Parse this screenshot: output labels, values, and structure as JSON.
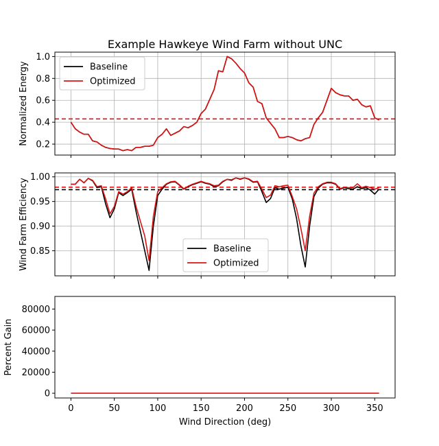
{
  "figure": {
    "title": "Example Hawkeye Wind Farm without UNC",
    "xlabel": "Wind Direction (deg)",
    "x_ticks": [
      0,
      50,
      100,
      150,
      200,
      250,
      300,
      350
    ]
  },
  "legend": {
    "baseline_label": "Baseline",
    "optimized_label": "Optimized"
  },
  "colors": {
    "baseline": "#000000",
    "optimized": "#dd1111",
    "grid": "#b0b0b0"
  },
  "chart_data": [
    {
      "type": "line",
      "title": "Example Hawkeye Wind Farm without UNC",
      "ylabel": "Normalized Energy",
      "xlim": [
        -18.5,
        373.5
      ],
      "ylim": [
        0.1,
        1.04
      ],
      "y_ticks": [
        0.2,
        0.4,
        0.6,
        0.8,
        1.0
      ],
      "y_tick_labels": [
        "0.2",
        "0.4",
        "0.6",
        "0.8",
        "1.0"
      ],
      "grid": true,
      "legend_position": "upper-left",
      "x": [
        0,
        5,
        10,
        15,
        20,
        25,
        30,
        35,
        40,
        45,
        50,
        55,
        60,
        65,
        70,
        75,
        80,
        85,
        90,
        95,
        100,
        105,
        110,
        115,
        120,
        125,
        130,
        135,
        140,
        145,
        150,
        155,
        160,
        165,
        170,
        175,
        180,
        185,
        190,
        195,
        200,
        205,
        210,
        215,
        220,
        225,
        230,
        235,
        240,
        245,
        250,
        255,
        260,
        265,
        270,
        275,
        280,
        285,
        290,
        295,
        300,
        305,
        310,
        315,
        320,
        325,
        330,
        335,
        340,
        345,
        350,
        355
      ],
      "series": [
        {
          "name": "Baseline",
          "values": [
            0.4,
            0.34,
            0.31,
            0.29,
            0.29,
            0.23,
            0.22,
            0.19,
            0.17,
            0.16,
            0.155,
            0.155,
            0.14,
            0.15,
            0.14,
            0.17,
            0.17,
            0.18,
            0.18,
            0.19,
            0.26,
            0.29,
            0.34,
            0.28,
            0.3,
            0.32,
            0.36,
            0.35,
            0.37,
            0.4,
            0.48,
            0.52,
            0.61,
            0.7,
            0.87,
            0.86,
            1.0,
            0.98,
            0.94,
            0.89,
            0.85,
            0.76,
            0.72,
            0.59,
            0.57,
            0.44,
            0.39,
            0.34,
            0.26,
            0.26,
            0.27,
            0.26,
            0.24,
            0.23,
            0.25,
            0.26,
            0.38,
            0.44,
            0.49,
            0.6,
            0.71,
            0.67,
            0.65,
            0.64,
            0.64,
            0.6,
            0.61,
            0.56,
            0.54,
            0.55,
            0.44,
            0.42
          ]
        },
        {
          "name": "Optimized",
          "values": [
            0.4,
            0.34,
            0.31,
            0.29,
            0.29,
            0.23,
            0.22,
            0.19,
            0.17,
            0.16,
            0.155,
            0.155,
            0.14,
            0.15,
            0.14,
            0.17,
            0.17,
            0.18,
            0.18,
            0.19,
            0.26,
            0.29,
            0.34,
            0.28,
            0.3,
            0.32,
            0.36,
            0.35,
            0.37,
            0.4,
            0.48,
            0.52,
            0.61,
            0.7,
            0.87,
            0.86,
            1.0,
            0.98,
            0.94,
            0.89,
            0.85,
            0.76,
            0.72,
            0.59,
            0.57,
            0.44,
            0.39,
            0.34,
            0.26,
            0.26,
            0.27,
            0.26,
            0.24,
            0.23,
            0.25,
            0.26,
            0.38,
            0.44,
            0.49,
            0.6,
            0.71,
            0.67,
            0.65,
            0.64,
            0.64,
            0.6,
            0.61,
            0.56,
            0.54,
            0.55,
            0.44,
            0.42
          ]
        }
      ],
      "hlines": [
        {
          "series": "Optimized",
          "y": 0.43
        }
      ]
    },
    {
      "type": "line",
      "ylabel": "Wind Farm Efficiency",
      "xlim": [
        -18.5,
        373.5
      ],
      "ylim": [
        0.799,
        1.008
      ],
      "y_ticks": [
        0.85,
        0.9,
        0.95,
        1.0
      ],
      "y_tick_labels": [
        "0.85",
        "0.90",
        "0.95",
        "1.00"
      ],
      "grid": true,
      "legend_position": "lower-center",
      "x": [
        0,
        5,
        10,
        15,
        20,
        25,
        30,
        35,
        40,
        45,
        50,
        55,
        60,
        65,
        70,
        75,
        80,
        85,
        90,
        95,
        100,
        105,
        110,
        115,
        120,
        125,
        130,
        135,
        140,
        145,
        150,
        155,
        160,
        165,
        170,
        175,
        180,
        185,
        190,
        195,
        200,
        205,
        210,
        215,
        220,
        225,
        230,
        235,
        240,
        245,
        250,
        255,
        260,
        265,
        270,
        275,
        280,
        285,
        290,
        295,
        300,
        305,
        310,
        315,
        320,
        325,
        330,
        335,
        340,
        345,
        350,
        355
      ],
      "series": [
        {
          "name": "Baseline",
          "values": [
            0.985,
            0.985,
            0.995,
            0.988,
            0.997,
            0.992,
            0.978,
            0.98,
            0.945,
            0.917,
            0.935,
            0.968,
            0.962,
            0.968,
            0.975,
            0.93,
            0.89,
            0.85,
            0.81,
            0.9,
            0.962,
            0.975,
            0.985,
            0.989,
            0.99,
            0.983,
            0.975,
            0.98,
            0.984,
            0.987,
            0.99,
            0.987,
            0.985,
            0.98,
            0.982,
            0.99,
            0.995,
            0.993,
            0.998,
            0.995,
            0.998,
            0.995,
            0.989,
            0.99,
            0.97,
            0.948,
            0.956,
            0.978,
            0.975,
            0.977,
            0.979,
            0.955,
            0.915,
            0.86,
            0.817,
            0.9,
            0.96,
            0.977,
            0.985,
            0.988,
            0.988,
            0.985,
            0.975,
            0.978,
            0.976,
            0.975,
            0.98,
            0.976,
            0.978,
            0.973,
            0.965,
            0.975
          ]
        },
        {
          "name": "Optimized",
          "values": [
            0.985,
            0.985,
            0.995,
            0.988,
            0.997,
            0.993,
            0.98,
            0.982,
            0.955,
            0.925,
            0.94,
            0.97,
            0.965,
            0.97,
            0.978,
            0.94,
            0.91,
            0.88,
            0.83,
            0.92,
            0.97,
            0.978,
            0.986,
            0.99,
            0.991,
            0.984,
            0.976,
            0.981,
            0.985,
            0.988,
            0.991,
            0.988,
            0.986,
            0.982,
            0.983,
            0.991,
            0.995,
            0.994,
            0.998,
            0.996,
            0.998,
            0.996,
            0.99,
            0.991,
            0.975,
            0.958,
            0.963,
            0.982,
            0.98,
            0.982,
            0.983,
            0.96,
            0.935,
            0.895,
            0.85,
            0.92,
            0.967,
            0.98,
            0.986,
            0.989,
            0.989,
            0.986,
            0.976,
            0.979,
            0.978,
            0.978,
            0.986,
            0.978,
            0.981,
            0.978,
            0.975,
            0.978
          ]
        }
      ],
      "hlines": [
        {
          "series": "Baseline",
          "y": 0.974
        },
        {
          "series": "Optimized",
          "y": 0.979
        }
      ]
    },
    {
      "type": "line",
      "ylabel": "Percent Gain",
      "xlabel": "Wind Direction (deg)",
      "xlim": [
        -18.5,
        373.5
      ],
      "ylim": [
        -4500,
        92000
      ],
      "y_ticks": [
        0,
        20000,
        40000,
        60000,
        80000
      ],
      "y_tick_labels": [
        "0",
        "20000",
        "40000",
        "60000",
        "80000"
      ],
      "grid": false,
      "x": [
        0,
        355
      ],
      "series": [
        {
          "name": "Optimized",
          "values": [
            0,
            0
          ]
        }
      ]
    }
  ]
}
